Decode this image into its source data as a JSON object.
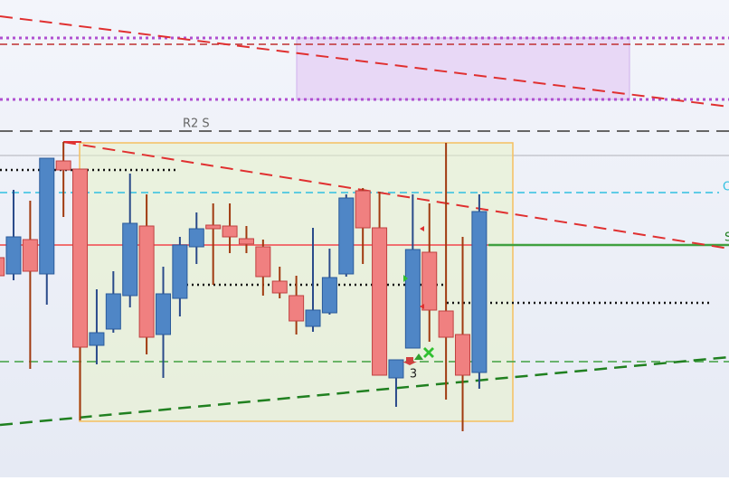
{
  "chart_data": {
    "type": "candlestick",
    "ylim": [
      0,
      542
    ],
    "up_color": "#4f86c6",
    "down_color": "#f08080",
    "annotations": [
      "R2 S",
      "C",
      "S",
      "3"
    ],
    "open": [
      257,
      239,
      277,
      239,
      364,
      355,
      160,
      178,
      215,
      292,
      172,
      212,
      269,
      293,
      292,
      278,
      269,
      231,
      215,
      181,
      196,
      239,
      331,
      290,
      124,
      157,
      263,
      198,
      172,
      130
    ],
    "high": [
      257,
      332,
      320,
      367,
      385,
      355,
      222,
      242,
      350,
      327,
      247,
      280,
      307,
      317,
      317,
      292,
      277,
      247,
      237,
      290,
      267,
      327,
      334,
      330,
      144,
      327,
      317,
      384,
      280,
      327
    ],
    "low": [
      237,
      232,
      134,
      205,
      302,
      77,
      139,
      174,
      202,
      150,
      124,
      192,
      250,
      227,
      262,
      262,
      215,
      212,
      172,
      175,
      194,
      236,
      250,
      127,
      92,
      157,
      164,
      100,
      65,
      112
    ],
    "close": [
      237,
      280,
      242,
      367,
      354,
      158,
      174,
      217,
      295,
      169,
      217,
      271,
      289,
      289,
      280,
      272,
      236,
      218,
      187,
      199,
      235,
      323,
      290,
      127,
      144,
      266,
      199,
      169,
      127,
      308
    ]
  }
}
